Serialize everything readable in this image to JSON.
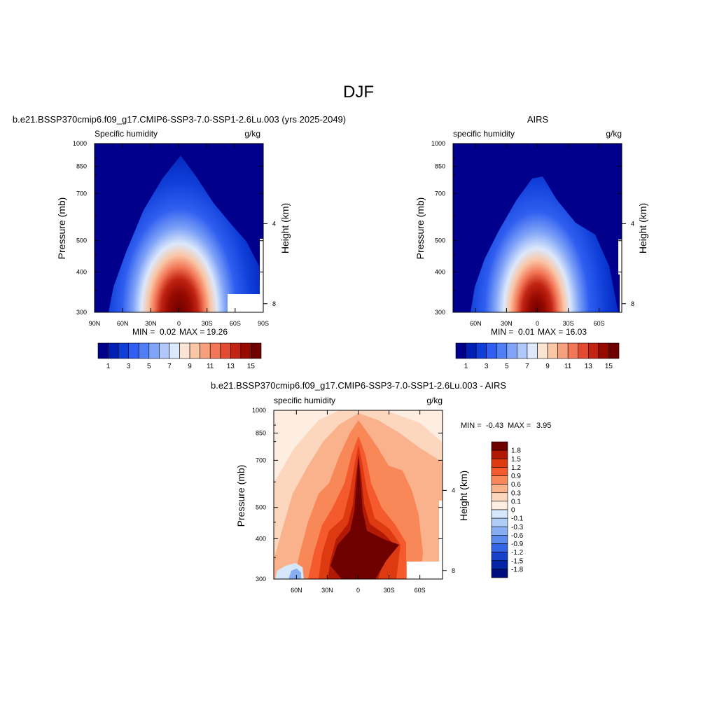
{
  "page": {
    "title": "DJF"
  },
  "panels": {
    "model": {
      "title": "b.e21.BSSP370cmip6.f09_g17.CMIP6-SSP3-7.0-SSP1-2.6Lu.003 (yrs 2025-2049)",
      "left_label": "Specific humidity",
      "units": "g/kg",
      "ylabel": "Pressure (mb)",
      "ylabel_right": "Height (km)",
      "yticks": [
        "300",
        "400",
        "500",
        "700",
        "850",
        "1000"
      ],
      "height_ticks": [
        "8",
        "4"
      ],
      "xticks": [
        "90N",
        "60N",
        "30N",
        "0",
        "30S",
        "60S",
        "90S"
      ],
      "min_label": "MIN =",
      "min_value": "0.02",
      "max_label": "MAX =",
      "max_value": "19.26"
    },
    "obs": {
      "title": "AIRS",
      "left_label": "specific humidity",
      "units": "g/kg",
      "ylabel": "Pressure (mb)",
      "ylabel_right": "Height (km)",
      "yticks": [
        "300",
        "400",
        "500",
        "700",
        "850",
        "1000"
      ],
      "height_ticks": [
        "8",
        "4"
      ],
      "xticks": [
        "60N",
        "30N",
        "0",
        "30S",
        "60S"
      ],
      "min_label": "MIN =",
      "min_value": "0.01",
      "max_label": "MAX =",
      "max_value": "16.03"
    },
    "diff": {
      "title": "b.e21.BSSP370cmip6.f09_g17.CMIP6-SSP3-7.0-SSP1-2.6Lu.003 - AIRS",
      "left_label": "specific humidity",
      "units": "g/kg",
      "ylabel": "Pressure (mb)",
      "ylabel_right": "Height (km)",
      "yticks": [
        "300",
        "400",
        "500",
        "700",
        "850",
        "1000"
      ],
      "height_ticks": [
        "8",
        "4"
      ],
      "xticks": [
        "60N",
        "30N",
        "0",
        "30S",
        "60S"
      ],
      "min_label": "MIN =",
      "min_value": "-0.43",
      "max_label": "MAX =",
      "max_value": "3.95"
    }
  },
  "colorbars": {
    "humidity": {
      "colors": [
        "#00008c",
        "#001fb4",
        "#0f3fd8",
        "#2f5ef0",
        "#4f7ef5",
        "#7fa3f7",
        "#b0c8f9",
        "#dce8fb",
        "#fbe4d2",
        "#f9c6a6",
        "#f7a07e",
        "#f27757",
        "#e34a32",
        "#c22414",
        "#960a00",
        "#6e0000"
      ],
      "labels": [
        "1",
        "3",
        "5",
        "7",
        "9",
        "11",
        "13",
        "15"
      ]
    },
    "difference": {
      "colors": [
        "#6e0000",
        "#b31a05",
        "#dd3a12",
        "#f45a2d",
        "#f98858",
        "#fab28c",
        "#fcd7bd",
        "#fdeee1",
        "#d6e6fb",
        "#b0cdf7",
        "#87aef2",
        "#5b8aed",
        "#3264e4",
        "#1641c9",
        "#0525a8",
        "#000e7d"
      ],
      "labels": [
        "1.8",
        "1.5",
        "1.2",
        "0.9",
        "0.6",
        "0.3",
        "0.1",
        "0",
        "-0.1",
        "-0.3",
        "-0.6",
        "-0.9",
        "-1.2",
        "-1.5",
        "-1.8"
      ]
    }
  },
  "chart_data": [
    {
      "type": "heatmap",
      "title": "b.e21.BSSP370cmip6.f09_g17.CMIP6-SSP3-7.0-SSP1-2.6Lu.003 (yrs 2025-2049)",
      "variable": "Specific humidity",
      "units": "g/kg",
      "xlabel": "",
      "ylabel": "Pressure (mb)",
      "ylabel_right": "Height (km)",
      "x_range": [
        90,
        -90
      ],
      "y_range_mb": [
        1000,
        300
      ],
      "y_scale": "log",
      "contour_levels": [
        1,
        2,
        3,
        4,
        5,
        6,
        7,
        8,
        9,
        10,
        11,
        12,
        13,
        14,
        15
      ],
      "peak": {
        "lat": 0,
        "p_mb": 1000
      },
      "min": 0.02,
      "max": 19.26
    },
    {
      "type": "heatmap",
      "title": "AIRS",
      "variable": "specific humidity",
      "units": "g/kg",
      "xlabel": "",
      "ylabel": "Pressure (mb)",
      "ylabel_right": "Height (km)",
      "x_range": [
        82,
        -82
      ],
      "y_range_mb": [
        1000,
        300
      ],
      "y_scale": "log",
      "contour_levels": [
        1,
        2,
        3,
        4,
        5,
        6,
        7,
        8,
        9,
        10,
        11,
        12,
        13,
        14,
        15
      ],
      "peak": {
        "lat": 0,
        "p_mb": 1000
      },
      "min": 0.01,
      "max": 16.03
    },
    {
      "type": "heatmap",
      "title": "b.e21.BSSP370cmip6.f09_g17.CMIP6-SSP3-7.0-SSP1-2.6Lu.003 - AIRS",
      "variable": "specific humidity",
      "units": "g/kg",
      "xlabel": "",
      "ylabel": "Pressure (mb)",
      "ylabel_right": "Height (km)",
      "x_range": [
        82,
        -82
      ],
      "y_range_mb": [
        1000,
        300
      ],
      "y_scale": "log",
      "contour_levels": [
        -1.8,
        -1.5,
        -1.2,
        -0.9,
        -0.6,
        -0.3,
        -0.1,
        0,
        0.1,
        0.3,
        0.6,
        0.9,
        1.2,
        1.5,
        1.8
      ],
      "peak": {
        "lat": 0,
        "p_mb": 850
      },
      "min": -0.43,
      "max": 3.95
    }
  ]
}
